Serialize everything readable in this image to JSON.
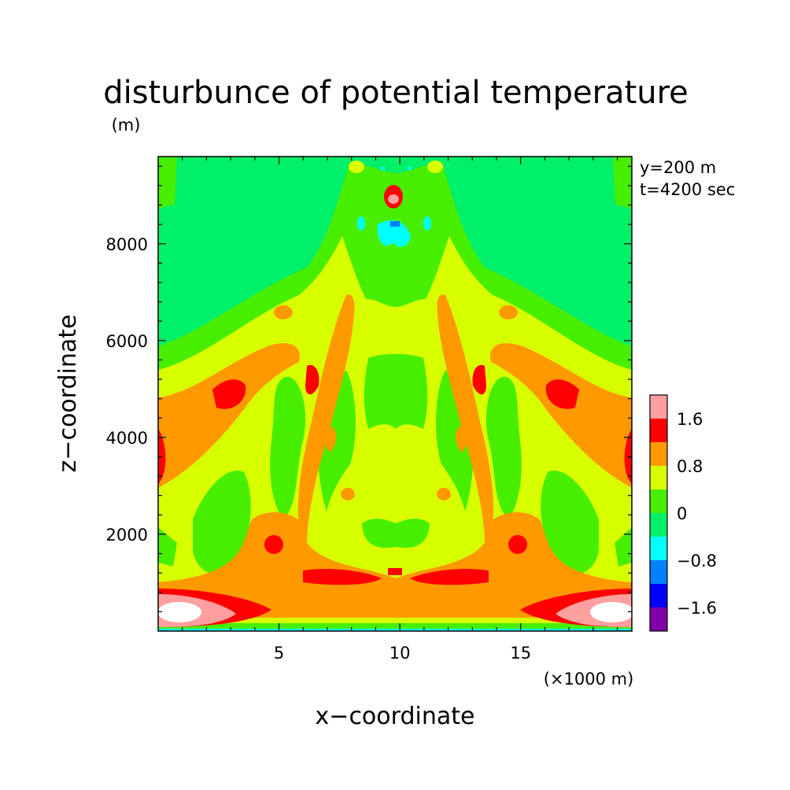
{
  "chart_data": {
    "type": "heatmap",
    "title": "disturbunce of potential temperature",
    "ylabel": "z−coordinate",
    "xlabel": "x−coordinate",
    "y_unit": "(m)",
    "x_unit": "(×1000 m)",
    "annotations": [
      "y=200 m",
      "t=4200 sec"
    ],
    "xlim": [
      0,
      19.6
    ],
    "ylim": [
      0,
      9800
    ],
    "x_ticks": [
      5,
      10,
      15
    ],
    "x_tick_labels": [
      "5",
      "10",
      "15"
    ],
    "y_ticks": [
      2000,
      4000,
      6000,
      8000
    ],
    "y_tick_labels": [
      "2000",
      "4000",
      "6000",
      "8000"
    ],
    "colorbar": {
      "levels": [
        -2.0,
        -1.6,
        -1.2,
        -0.8,
        -0.4,
        0,
        0.4,
        0.8,
        1.2,
        1.6,
        2.0
      ],
      "colors": [
        "#7f00a8",
        "#0000ff",
        "#007fff",
        "#00ffff",
        "#00f06a",
        "#48ee00",
        "#d8ff00",
        "#ff9900",
        "#ff0000",
        "#ff9f9f"
      ],
      "tick_labels": [
        "1.6",
        "0.8",
        "0",
        "−0.8",
        "−1.6"
      ],
      "tick_values": [
        1.6,
        0.8,
        0,
        -0.8,
        -1.6
      ]
    },
    "field_colors": {
      "above_max": "#ffffff"
    }
  }
}
